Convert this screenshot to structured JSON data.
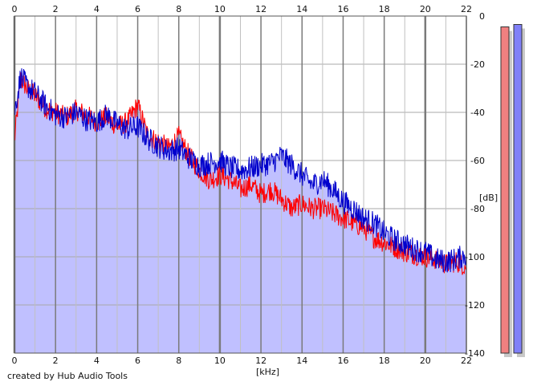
{
  "chart_data": {
    "type": "area",
    "xlabel": "[kHz]",
    "ylabel": "[dB]",
    "xlim": [
      0,
      22
    ],
    "ylim": [
      -140,
      0
    ],
    "x_ticks": [
      "0",
      "2",
      "4",
      "6",
      "8",
      "10",
      "12",
      "14",
      "16",
      "18",
      "20",
      "22"
    ],
    "y_ticks": [
      "0",
      "-20",
      "-40",
      "-60",
      "-80",
      "-100",
      "-120",
      "-140"
    ],
    "grid": true,
    "series": [
      {
        "color": "#ff0000",
        "x": [
          0,
          0.3,
          0.6,
          1,
          1.5,
          2,
          2.5,
          3,
          3.5,
          4,
          4.5,
          5,
          5.5,
          6,
          6.5,
          7,
          7.5,
          8,
          8.5,
          9,
          9.5,
          10,
          10.5,
          11,
          11.5,
          12,
          12.5,
          13,
          13.5,
          14,
          14.5,
          15,
          15.5,
          16,
          16.5,
          17,
          17.5,
          18,
          18.5,
          19,
          19.5,
          20,
          20.5,
          21,
          21.5,
          22
        ],
        "values": [
          -52,
          -26,
          -30,
          -33,
          -38,
          -40,
          -42,
          -39,
          -41,
          -44,
          -42,
          -46,
          -44,
          -37,
          -50,
          -52,
          -55,
          -50,
          -58,
          -64,
          -68,
          -66,
          -68,
          -72,
          -70,
          -74,
          -72,
          -76,
          -80,
          -78,
          -80,
          -80,
          -82,
          -84,
          -86,
          -88,
          -92,
          -94,
          -96,
          -98,
          -99,
          -100,
          -101,
          -103,
          -102,
          -104
        ]
      },
      {
        "color": "#0000cc",
        "x": [
          0,
          0.3,
          0.6,
          1,
          1.5,
          2,
          2.5,
          3,
          3.5,
          4,
          4.5,
          5,
          5.5,
          6,
          6.5,
          7,
          7.5,
          8,
          8.5,
          9,
          9.5,
          10,
          10.5,
          11,
          11.5,
          12,
          12.5,
          13,
          13.5,
          14,
          14.5,
          15,
          15.5,
          16,
          16.5,
          17,
          17.5,
          18,
          18.5,
          19,
          19.5,
          20,
          20.5,
          21,
          21.5,
          22
        ],
        "values": [
          -40,
          -25,
          -29,
          -32,
          -37,
          -41,
          -42,
          -40,
          -43,
          -44,
          -41,
          -45,
          -47,
          -46,
          -51,
          -54,
          -56,
          -55,
          -59,
          -62,
          -61,
          -60,
          -63,
          -64,
          -63,
          -62,
          -61,
          -58,
          -62,
          -66,
          -70,
          -68,
          -72,
          -77,
          -80,
          -84,
          -86,
          -90,
          -93,
          -95,
          -97,
          -98,
          -101,
          -102,
          -101,
          -99
        ]
      }
    ],
    "fill": {
      "color": "#c0c0ff",
      "follows": "max of series"
    },
    "level_meters": [
      {
        "color": "#f08080",
        "level_db": -4.5
      },
      {
        "color": "#8080f8",
        "level_db": -3.5
      }
    ]
  },
  "credit": "created by Hub Audio Tools"
}
